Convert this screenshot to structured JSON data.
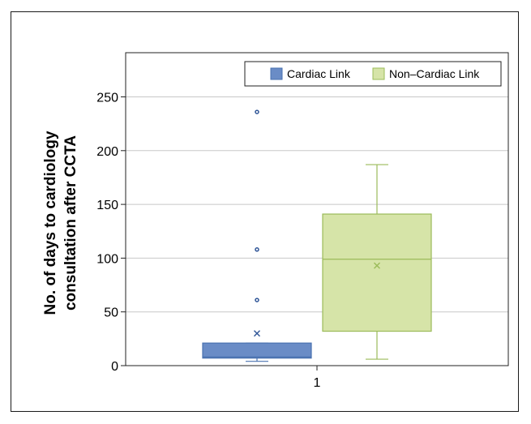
{
  "chart_data": {
    "type": "box",
    "ylabel_line1": "No. of days to cardiology",
    "ylabel_line2": "consultation after CCTA",
    "categories": [
      "1"
    ],
    "ylim": [
      0,
      250
    ],
    "yticks": [
      0,
      50,
      100,
      150,
      200,
      250
    ],
    "grid": true,
    "legend_position": "top-right",
    "series": [
      {
        "name": "Cardiac Link",
        "color": "#4a72b0",
        "fill": "#6a8cc6",
        "min": 4,
        "q1": 7,
        "median": 8,
        "q3": 21,
        "max": 21,
        "mean": 30,
        "outliers": [
          61,
          108,
          236
        ]
      },
      {
        "name": "Non–Cardiac Link",
        "color": "#9bbb59",
        "fill": "#d6e4a8",
        "min": 6,
        "q1": 32,
        "median": 99,
        "q3": 141,
        "max": 187,
        "mean": 93,
        "outliers": []
      }
    ]
  }
}
